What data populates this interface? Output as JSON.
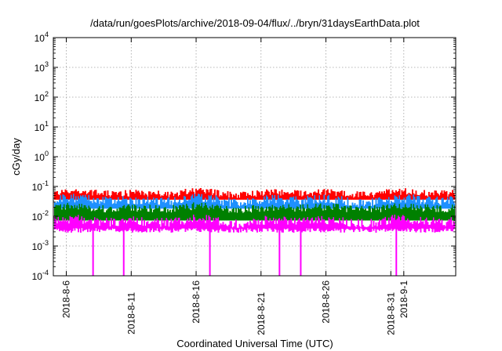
{
  "chart_data": {
    "type": "area",
    "title": "/data/run/goesPlots/archive/2018-09-04/flux/../bryn/31daysEarthData.plot",
    "xlabel": "Coordinated Universal Time (UTC)",
    "ylabel": "cGy/day",
    "yscale": "log",
    "ylim": [
      0.0001,
      10000
    ],
    "xlim": [
      "2018-08-05",
      "2018-09-05"
    ],
    "grid": true,
    "y_ticks": [
      {
        "base": "10",
        "exp": "-4"
      },
      {
        "base": "10",
        "exp": "-3"
      },
      {
        "base": "10",
        "exp": "-2"
      },
      {
        "base": "10",
        "exp": "-1"
      },
      {
        "base": "10",
        "exp": "0"
      },
      {
        "base": "10",
        "exp": "1"
      },
      {
        "base": "10",
        "exp": "2"
      },
      {
        "base": "10",
        "exp": "3"
      },
      {
        "base": "10",
        "exp": "4"
      }
    ],
    "x_ticks": [
      {
        "label": "2018-8-6",
        "date": "2018-08-06",
        "row": 0
      },
      {
        "label": "2018-8-11",
        "date": "2018-08-11",
        "row": 1
      },
      {
        "label": "2018-8-16",
        "date": "2018-08-16",
        "row": 0
      },
      {
        "label": "2018-8-21",
        "date": "2018-08-21",
        "row": 1
      },
      {
        "label": "2018-8-26",
        "date": "2018-08-26",
        "row": 0
      },
      {
        "label": "2018-8-31",
        "date": "2018-08-31",
        "row": 1
      },
      {
        "label": "2018-9-1",
        "date": "2018-09-01",
        "row": 0
      }
    ],
    "series": [
      {
        "color": "#ff0000",
        "typical_range": [
          0.04,
          0.09
        ]
      },
      {
        "color": "#1e90ff",
        "typical_range": [
          0.02,
          0.06
        ]
      },
      {
        "color": "#008000",
        "typical_range": [
          0.012,
          0.03
        ]
      },
      {
        "color": "#ff00ff",
        "typical_range": [
          0.004,
          0.012
        ]
      }
    ],
    "dropouts": [
      "2018-08-08",
      "2018-08-10",
      "2018-08-17",
      "2018-08-22",
      "2018-08-24",
      "2018-08-31"
    ]
  }
}
